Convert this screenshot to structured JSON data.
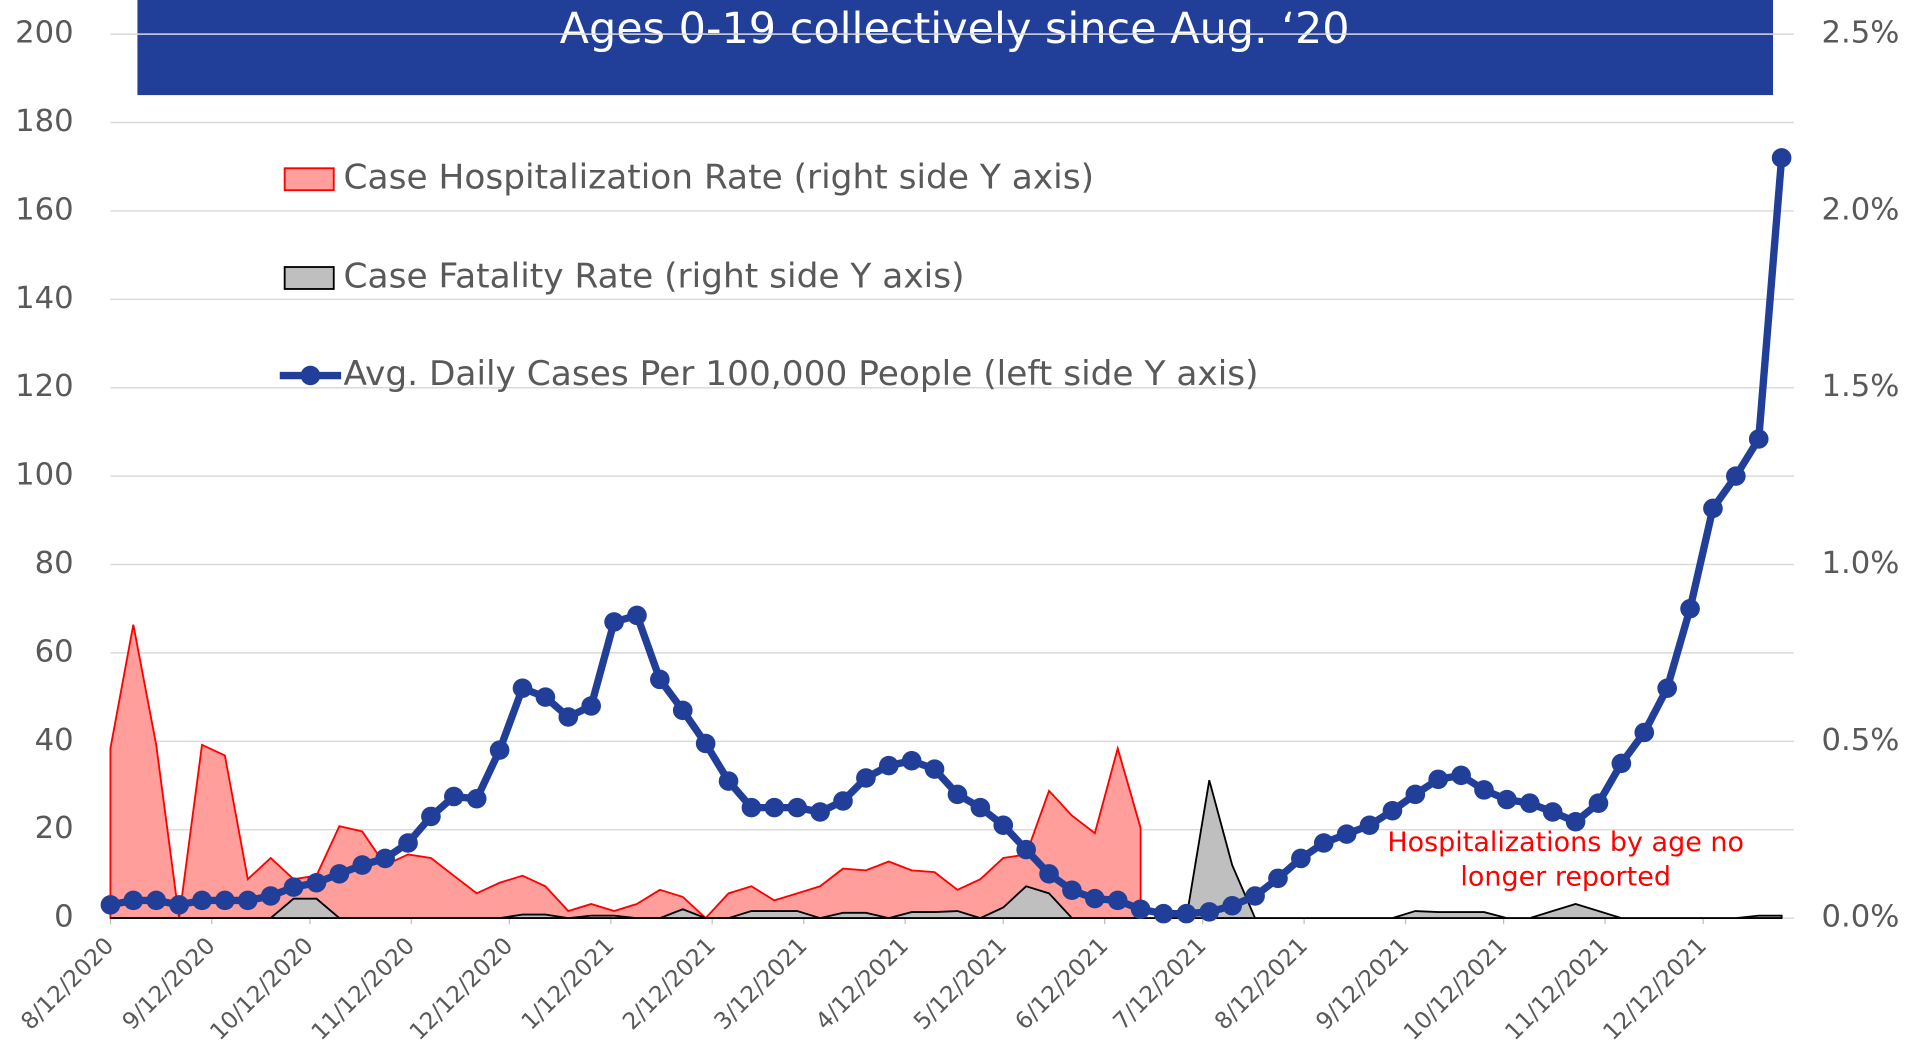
{
  "chart_data": {
    "type": "line-area",
    "title": "Ages 0-19 collectively since Aug. ‘20",
    "x": [
      "8/12/2020",
      "8/19/2020",
      "8/26/2020",
      "9/2/2020",
      "9/9/2020",
      "9/16/2020",
      "9/23/2020",
      "9/30/2020",
      "10/7/2020",
      "10/14/2020",
      "10/21/2020",
      "10/28/2020",
      "11/4/2020",
      "11/11/2020",
      "11/18/2020",
      "11/25/2020",
      "12/2/2020",
      "12/9/2020",
      "12/16/2020",
      "12/23/2020",
      "12/30/2020",
      "1/6/2021",
      "1/13/2021",
      "1/20/2021",
      "1/27/2021",
      "2/3/2021",
      "2/10/2021",
      "2/17/2021",
      "2/24/2021",
      "3/3/2021",
      "3/10/2021",
      "3/17/2021",
      "3/24/2021",
      "3/31/2021",
      "4/7/2021",
      "4/14/2021",
      "4/21/2021",
      "4/28/2021",
      "5/5/2021",
      "5/12/2021",
      "5/19/2021",
      "5/26/2021",
      "6/2/2021",
      "6/9/2021",
      "6/16/2021",
      "6/23/2021",
      "6/30/2021",
      "7/7/2021",
      "7/14/2021",
      "7/21/2021",
      "7/28/2021",
      "8/4/2021",
      "8/11/2021",
      "8/18/2021",
      "8/25/2021",
      "9/1/2021",
      "9/8/2021",
      "9/15/2021",
      "9/22/2021",
      "9/29/2021",
      "10/6/2021",
      "10/13/2021",
      "10/20/2021",
      "10/27/2021",
      "11/3/2021",
      "11/10/2021",
      "11/17/2021",
      "11/24/2021",
      "12/1/2021",
      "12/8/2021",
      "12/15/2021",
      "12/22/2021",
      "12/29/2021",
      "1/5/2022"
    ],
    "xticks": [
      "8/12/2020",
      "9/12/2020",
      "10/12/2020",
      "11/12/2020",
      "12/12/2020",
      "1/12/2021",
      "2/12/2021",
      "3/12/2021",
      "4/12/2021",
      "5/12/2021",
      "6/12/2021",
      "7/12/2021",
      "8/12/2021",
      "9/12/2021",
      "10/12/2021",
      "11/12/2021",
      "12/12/2021"
    ],
    "ylim": [
      0,
      200
    ],
    "yticks": [
      0,
      20,
      40,
      60,
      80,
      100,
      120,
      140,
      160,
      180,
      200
    ],
    "y2lim": [
      0,
      2.5
    ],
    "y2ticks": [
      {
        "value": 0,
        "label": "0.0%"
      },
      {
        "value": 0.5,
        "label": "0.5%"
      },
      {
        "value": 1,
        "label": "1.0%"
      },
      {
        "value": 1.5,
        "label": "1.5%"
      },
      {
        "value": 2,
        "label": "2.0%"
      },
      {
        "value": 2.5,
        "label": "2.5%"
      }
    ],
    "grid": true,
    "legend": "upper left",
    "annotation": [
      "Hospitalizations by age no",
      "longer reported"
    ],
    "series": [
      {
        "name": "Case Hospitalization Rate (right side Y axis)",
        "kind": "area",
        "axis": "y2",
        "color": "#ff9e9a",
        "edge": "#ff0000",
        "values": [
          0.48,
          0.83,
          0.49,
          0,
          0.49,
          0.46,
          0.11,
          0.17,
          0.11,
          0.12,
          0.26,
          0.245,
          0.15,
          0.18,
          0.17,
          0.12,
          0.07,
          0.1,
          0.12,
          0.09,
          0.02,
          0.04,
          0.02,
          0.04,
          0.08,
          0.06,
          0,
          0.07,
          0.09,
          0.05,
          0.07,
          0.09,
          0.14,
          0.135,
          0.16,
          0.135,
          0.13,
          0.08,
          0.11,
          0.17,
          0.18,
          0.36,
          0.29,
          0.24,
          0.48,
          0.255,
          null,
          null,
          null,
          null,
          null,
          null,
          null,
          null,
          null,
          null,
          null,
          null,
          null,
          null,
          null,
          null,
          null,
          null,
          null,
          null,
          null,
          null,
          null,
          null,
          null,
          null,
          null,
          null
        ]
      },
      {
        "name": "Case Fatality Rate (right side Y axis)",
        "kind": "area",
        "axis": "y2",
        "color": "#bfbfbf",
        "edge": "#000000",
        "values": [
          0,
          0,
          0,
          0,
          0,
          0,
          0,
          0,
          0.055,
          0.055,
          0,
          0,
          0,
          0,
          0,
          0,
          0,
          0,
          0.01,
          0.01,
          0,
          0.007,
          0.007,
          0,
          0,
          0.025,
          0,
          0,
          0.02,
          0.02,
          0.02,
          0,
          0.015,
          0.015,
          0,
          0.017,
          0.017,
          0.02,
          0,
          0.03,
          0.09,
          0.07,
          0,
          0,
          0,
          0,
          0,
          0,
          0.39,
          0.15,
          0,
          0,
          0,
          0,
          0,
          0,
          0,
          0.02,
          0.017,
          0.017,
          0.017,
          0,
          0,
          0.02,
          0.04,
          0.02,
          0,
          0,
          0,
          0,
          0,
          0,
          0.007,
          0.007
        ]
      },
      {
        "name": "Avg. Daily Cases Per 100,000 People (left side Y axis)",
        "kind": "line",
        "axis": "y",
        "color": "#213f99",
        "values": [
          3,
          4,
          4,
          3,
          4,
          4,
          4,
          5,
          7,
          8,
          10,
          12,
          13.5,
          17,
          23,
          27.5,
          27,
          38,
          52,
          50,
          45.5,
          48,
          67,
          68.5,
          54,
          47,
          39.5,
          31,
          25,
          25,
          25,
          24,
          26.5,
          31.7,
          34.5,
          35.6,
          33.7,
          28,
          25,
          21,
          15.5,
          10,
          6.3,
          4.4,
          4,
          2,
          1,
          1,
          1.4,
          2.8,
          5,
          9,
          13.5,
          17,
          19,
          21,
          24.3,
          28,
          31.4,
          32.3,
          29,
          26.8,
          26,
          24,
          21.8,
          26,
          35,
          42,
          52,
          70,
          92.7,
          100,
          108.4,
          172
        ]
      }
    ]
  }
}
